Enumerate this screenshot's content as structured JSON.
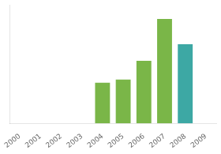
{
  "chart_data": {
    "type": "bar",
    "categories": [
      2000,
      2001,
      2002,
      2003,
      2004,
      2005,
      2006,
      2007,
      2008,
      2009
    ],
    "values": [
      0,
      0,
      0,
      0,
      37,
      40,
      57,
      95,
      72,
      0
    ],
    "colors": [
      "#7ab648",
      "#7ab648",
      "#7ab648",
      "#7ab648",
      "#7ab648",
      "#7ab648",
      "#7ab648",
      "#7ab648",
      "#3da8a4",
      "#3da8a4"
    ],
    "ylim": [
      0,
      108
    ],
    "yticks": [],
    "grid": false,
    "tick_labels": "x"
  }
}
